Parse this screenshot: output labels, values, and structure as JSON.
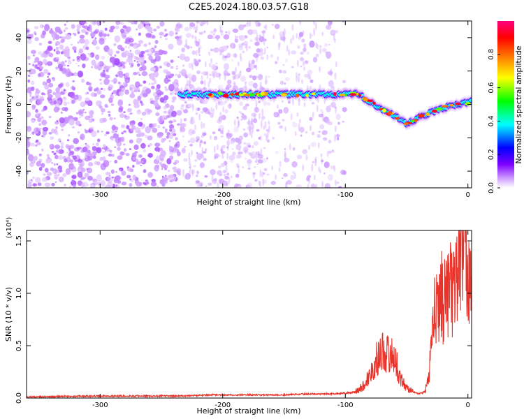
{
  "title": "C2E5.2024.180.03.57.G18",
  "chart_data": [
    {
      "type": "heatmap",
      "xlabel": "Height of straight line (km)",
      "ylabel": "Frequency (Hz)",
      "xlim": [
        -360,
        3
      ],
      "ylim": [
        -50,
        50
      ],
      "xticks": [
        -300,
        -200,
        -100,
        0
      ],
      "yticks": [
        -40,
        -20,
        0,
        20,
        40
      ],
      "colorbar": {
        "label": "Normalized spectral amplitude",
        "range": [
          0.0,
          1.0
        ],
        "ticks": [
          0.0,
          0.2,
          0.4,
          0.6,
          0.8
        ],
        "colormap": [
          "#ffffff",
          "#cc99ff",
          "#7f00ff",
          "#0000ff",
          "#00ffff",
          "#00ff00",
          "#ffff00",
          "#ff8000",
          "#ff0000",
          "#ff0080"
        ]
      },
      "ridge": {
        "x": [
          -235,
          -200,
          -150,
          -120,
          -100,
          -90,
          -80,
          -70,
          -60,
          -50,
          -40,
          -30,
          -20,
          -10,
          0,
          3
        ],
        "y": [
          6,
          6,
          6,
          6,
          6,
          6,
          2,
          -3,
          -7,
          -12,
          -8,
          -5,
          -2,
          0,
          1,
          2
        ],
        "peak_amplitude": 0.9
      },
      "noise_bands": [
        {
          "x": [
            -360,
            -235
          ],
          "density": "high"
        },
        {
          "x": [
            -235,
            -165
          ],
          "density": "medium"
        },
        {
          "x": [
            -165,
            -100
          ],
          "density": "low"
        }
      ]
    },
    {
      "type": "line",
      "xlabel": "Height of straight line (km)",
      "ylabel": "SNR (10 * v/v)",
      "y_multiplier": "(x10⁴)",
      "xlim": [
        -360,
        3
      ],
      "ylim": [
        0,
        1.6
      ],
      "xticks": [
        -300,
        -200,
        -100,
        0
      ],
      "yticks": [
        0.0,
        0.5,
        1.0,
        1.5
      ],
      "series": [
        {
          "color": "#e8332a",
          "x": [
            -360,
            -300,
            -250,
            -230,
            -210,
            -190,
            -170,
            -150,
            -130,
            -110,
            -95,
            -90,
            -85,
            -80,
            -75,
            -70,
            -65,
            -60,
            -55,
            -50,
            -45,
            -40,
            -35,
            -32,
            -30,
            -28,
            -25,
            -22,
            -20,
            -18,
            -15,
            -12,
            -10,
            -8,
            -5,
            -2,
            0,
            3
          ],
          "y": [
            0.01,
            0.02,
            0.02,
            0.02,
            0.03,
            0.03,
            0.03,
            0.03,
            0.04,
            0.04,
            0.05,
            0.07,
            0.12,
            0.22,
            0.36,
            0.45,
            0.42,
            0.4,
            0.18,
            0.1,
            0.06,
            0.04,
            0.06,
            0.18,
            0.5,
            0.78,
            0.85,
            1.05,
            0.9,
            0.98,
            1.1,
            0.95,
            1.2,
            1.25,
            1.35,
            1.5,
            1.25,
            1.2
          ]
        }
      ]
    }
  ]
}
